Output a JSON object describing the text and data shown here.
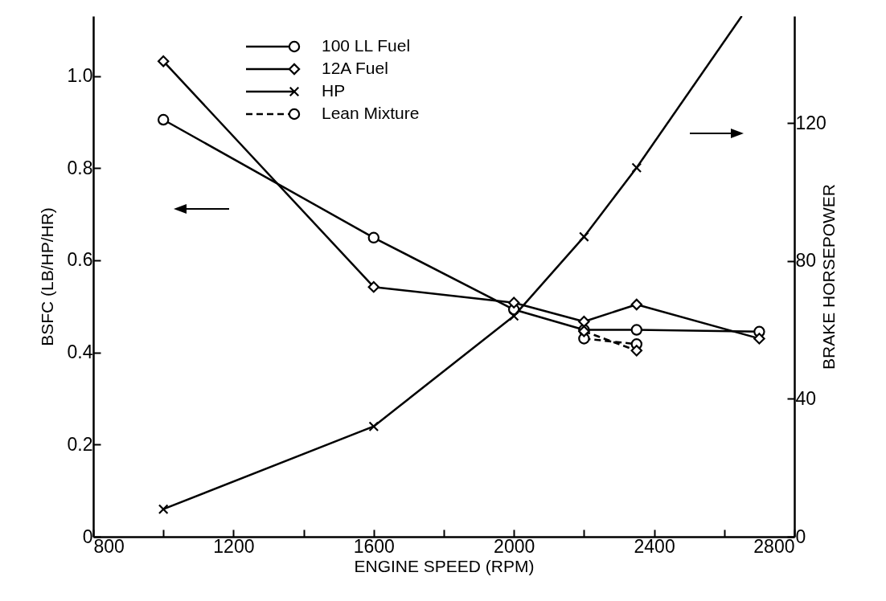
{
  "chart_data": {
    "type": "line",
    "xlabel": "ENGINE SPEED (RPM)",
    "ylabel": "BSFC (LB/HP/HR)",
    "y2label": "BRAKE HORSEPOWER",
    "xlim": [
      800,
      2800
    ],
    "xticks": [
      800,
      {
        "value": 1000,
        "label": null
      },
      1200,
      {
        "value": 1400,
        "label": null
      },
      1600,
      {
        "value": 1800,
        "label": null
      },
      2000,
      {
        "value": 2200,
        "label": null
      },
      2400,
      {
        "value": 2600,
        "label": null
      },
      2800
    ],
    "ylim": [
      0,
      1.13
    ],
    "yticks": [
      0,
      0.2,
      0.4,
      0.6,
      0.8,
      {
        "value": 1,
        "label": "1.0"
      }
    ],
    "y2lim": [
      0,
      151
    ],
    "y2ticks": [
      0,
      40,
      80,
      120
    ],
    "grid": false,
    "legend": "top",
    "series": [
      {
        "name": "100 LL Fuel",
        "color": "#000000",
        "marker": "circle",
        "x": [
          1000,
          1600,
          2000,
          2200,
          2350,
          2700
        ],
        "values": [
          0.905,
          0.649,
          0.493,
          0.449,
          0.449,
          0.445
        ]
      },
      {
        "name": "12A Fuel",
        "color": "#000000",
        "marker": "diamond",
        "x": [
          1000,
          1600,
          2000,
          2200,
          2350,
          2700
        ],
        "values": [
          1.032,
          0.542,
          0.508,
          0.467,
          0.504,
          0.43
        ]
      },
      {
        "name": "HP",
        "color": "#000000",
        "marker": "cross",
        "axis": "y2",
        "x": [
          1000,
          1600,
          2000,
          2200,
          2350
        ],
        "values": [
          8,
          32,
          64,
          87,
          107
        ]
      },
      {
        "color": "#000000",
        "marker": "none",
        "axis": "y2",
        "x": [
          2350,
          2650
        ],
        "values": [
          107,
          151
        ]
      },
      {
        "name": "Lean Mixture",
        "color": "#000000",
        "marker": "circle",
        "line_style": "dashed",
        "x": [
          2200,
          2350
        ],
        "values": [
          0.43,
          0.418
        ]
      },
      {
        "color": "#000000",
        "marker": "diamond",
        "line_style": "dashed",
        "x": [
          2200,
          2350
        ],
        "values": [
          0.446,
          0.404
        ]
      }
    ]
  }
}
